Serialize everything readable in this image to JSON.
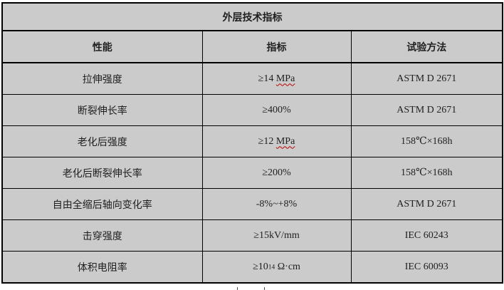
{
  "table": {
    "title": "外层技术指标",
    "columns": [
      "性能",
      "指标",
      "试验方法"
    ],
    "rows": [
      {
        "property": "拉伸强度",
        "value_segments": [
          {
            "text": "≥14 "
          },
          {
            "text": "MPa",
            "wavy": true
          }
        ],
        "method": "ASTM D 2671"
      },
      {
        "property": "断裂伸长率",
        "value_segments": [
          {
            "text": "≥400%"
          }
        ],
        "method": "ASTM D 2671"
      },
      {
        "property": "老化后强度",
        "value_segments": [
          {
            "text": "≥12 "
          },
          {
            "text": "MPa",
            "wavy": true
          }
        ],
        "method": "158℃×168h"
      },
      {
        "property": "老化后断裂伸长率",
        "value_segments": [
          {
            "text": "≥200%"
          }
        ],
        "method": "158℃×168h"
      },
      {
        "property": "自由全缩后轴向变化率",
        "value_segments": [
          {
            "text": "-8%~+8%"
          }
        ],
        "method": "ASTM D 2671"
      },
      {
        "property": "击穿强度",
        "value_segments": [
          {
            "text": "≥15kV/mm"
          }
        ],
        "method": "IEC 60243"
      },
      {
        "property": "体积电阻率",
        "value_segments": [
          {
            "text": "≥10"
          },
          {
            "text": "14",
            "small": true
          },
          {
            "text": " Ω·cm"
          }
        ],
        "method": "IEC 60093"
      }
    ]
  },
  "colors": {
    "table_background": "#cbcbcb",
    "border": "#000000",
    "text": "#1f1f1f",
    "spellcheck_underline": "#c00000",
    "page_background": "#ffffff"
  }
}
